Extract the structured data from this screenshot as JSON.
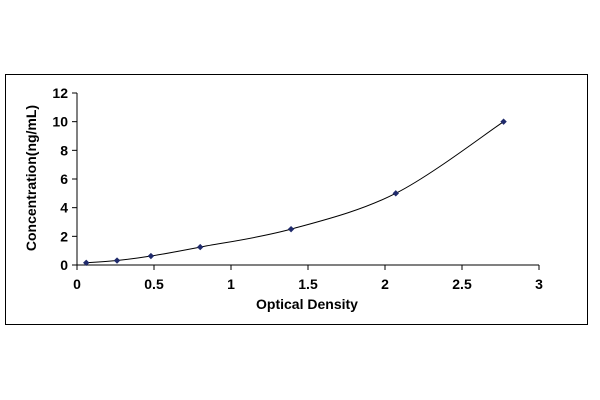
{
  "chart_data": {
    "type": "scatter",
    "title": "",
    "xlabel": "Optical Density",
    "ylabel": "Concentration(ng/mL)",
    "xlim": [
      0,
      3
    ],
    "ylim": [
      0,
      12
    ],
    "x_ticks": [
      "0",
      "0.5",
      "1",
      "1.5",
      "2",
      "2.5",
      "3"
    ],
    "y_ticks": [
      "0",
      "2",
      "4",
      "6",
      "8",
      "10",
      "12"
    ],
    "grid": false,
    "legend": "none",
    "series": [
      {
        "x": [
          0.06,
          0.26,
          0.48,
          0.8,
          1.39,
          2.07,
          2.77
        ],
        "y": [
          0.156,
          0.312,
          0.625,
          1.25,
          2.5,
          5,
          10
        ],
        "trendline": "smooth",
        "color": "#1f2a6b",
        "marker": "diamond"
      }
    ]
  }
}
